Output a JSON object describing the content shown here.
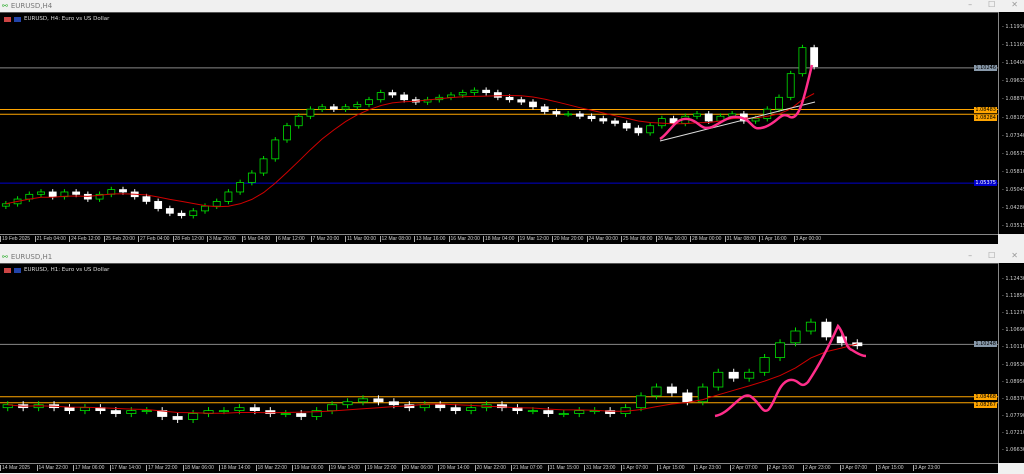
{
  "windows": [
    {
      "title": "EURUSD,H4",
      "header": "EURUSD, H4: Euro vs US Dollar",
      "price_labels": [
        "1.11930",
        "1.11165",
        "1.10400",
        "1.09635",
        "1.08870",
        "1.08105",
        "1.07340",
        "1.06575",
        "1.05810",
        "1.05045",
        "1.04280",
        "1.03515"
      ],
      "tags": {
        "bid": "1.10246",
        "level1": "1.08483",
        "level2": "1.08284",
        "blue": "1.05375"
      },
      "time_labels": [
        "19 Feb 2025",
        "21 Feb 04:00",
        "24 Feb 12:00",
        "25 Feb 20:00",
        "27 Feb 04:00",
        "28 Feb 12:00",
        "3 Mar 20:00",
        "5 Mar 04:00",
        "6 Mar 12:00",
        "7 Mar 20:00",
        "11 Mar 00:00",
        "12 Mar 08:00",
        "13 Mar 16:00",
        "16 Mar 20:00",
        "18 Mar 04:00",
        "19 Mar 12:00",
        "20 Mar 20:00",
        "24 Mar 00:00",
        "25 Mar 08:00",
        "26 Mar 16:00",
        "28 Mar 00:00",
        "31 Mar 08:00",
        "1 Apr 16:00",
        "3 Apr 00:00"
      ]
    },
    {
      "title": "EURUSD,H1",
      "header": "EURUSD, H1: Euro vs US Dollar",
      "price_labels": [
        "1.12430",
        "1.11850",
        "1.11270",
        "1.10690",
        "1.10110",
        "1.09530",
        "1.08950",
        "1.08370",
        "1.07790",
        "1.07210",
        "1.06630"
      ],
      "tags": {
        "bid": "1.10248",
        "level1": "1.08468",
        "level2": "1.08267"
      },
      "time_labels": [
        "14 Mar 2025",
        "14 Mar 22:00",
        "17 Mar 06:00",
        "17 Mar 14:00",
        "17 Mar 22:00",
        "18 Mar 06:00",
        "18 Mar 14:00",
        "18 Mar 22:00",
        "19 Mar 06:00",
        "19 Mar 14:00",
        "19 Mar 22:00",
        "20 Mar 06:00",
        "20 Mar 14:00",
        "20 Mar 22:00",
        "21 Mar 07:00",
        "31 Mar 15:00",
        "31 Mar 23:00",
        "1 Apr 07:00",
        "1 Apr 15:00",
        "1 Apr 23:00",
        "2 Apr 07:00",
        "2 Apr 15:00",
        "2 Apr 23:00",
        "3 Apr 07:00",
        "3 Apr 15:00",
        "3 Apr 23:00"
      ]
    }
  ],
  "colors": {
    "bull": "#00e000",
    "bear": "#ffffff",
    "ma": "#d00000",
    "level": "#ffa500",
    "blue": "#0000cc",
    "drawing": "#ff2d8a"
  },
  "chart_data": [
    {
      "type": "candlestick",
      "symbol": "EURUSD",
      "timeframe": "H4",
      "ylim": [
        1.032,
        1.124
      ],
      "closes": [
        1.045,
        1.047,
        1.049,
        1.05,
        1.048,
        1.05,
        1.049,
        1.047,
        1.049,
        1.051,
        1.05,
        1.048,
        1.046,
        1.043,
        1.041,
        1.04,
        1.042,
        1.044,
        1.046,
        1.05,
        1.054,
        1.058,
        1.064,
        1.072,
        1.078,
        1.082,
        1.085,
        1.086,
        1.085,
        1.086,
        1.087,
        1.089,
        1.092,
        1.091,
        1.089,
        1.088,
        1.089,
        1.09,
        1.091,
        1.092,
        1.093,
        1.092,
        1.09,
        1.089,
        1.088,
        1.086,
        1.084,
        1.083,
        1.083,
        1.082,
        1.081,
        1.08,
        1.079,
        1.077,
        1.075,
        1.078,
        1.081,
        1.079,
        1.082,
        1.083,
        1.08,
        1.082,
        1.083,
        1.08,
        1.081,
        1.085,
        1.09,
        1.1,
        1.111,
        1.103
      ]
    },
    {
      "type": "candlestick",
      "symbol": "EURUSD",
      "timeframe": "H1",
      "ylim": [
        1.061,
        1.128
      ],
      "closes": [
        1.082,
        1.081,
        1.082,
        1.081,
        1.08,
        1.081,
        1.08,
        1.079,
        1.08,
        1.08,
        1.078,
        1.077,
        1.079,
        1.08,
        1.08,
        1.081,
        1.08,
        1.079,
        1.079,
        1.078,
        1.08,
        1.082,
        1.083,
        1.084,
        1.083,
        1.082,
        1.081,
        1.082,
        1.081,
        1.08,
        1.081,
        1.082,
        1.081,
        1.08,
        1.08,
        1.079,
        1.079,
        1.08,
        1.08,
        1.079,
        1.081,
        1.085,
        1.088,
        1.086,
        1.083,
        1.088,
        1.093,
        1.091,
        1.093,
        1.098,
        1.103,
        1.107,
        1.11,
        1.105,
        1.103,
        1.102
      ]
    }
  ]
}
